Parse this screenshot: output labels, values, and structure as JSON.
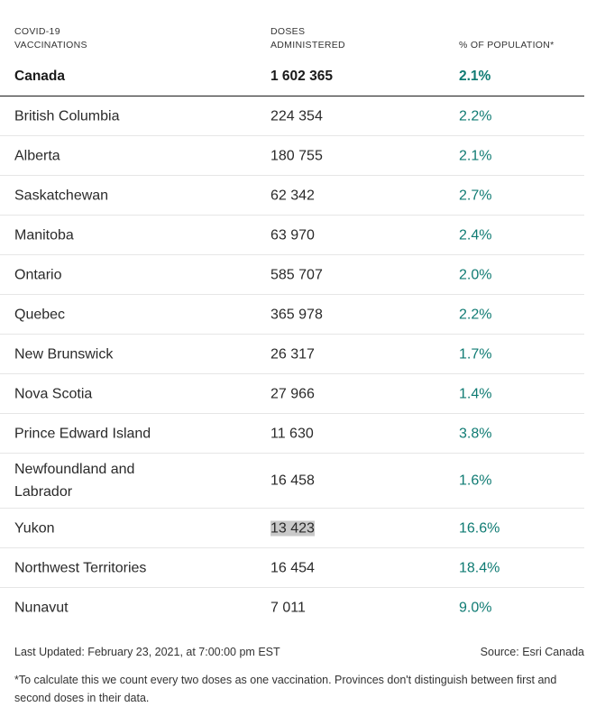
{
  "headers": {
    "region": [
      "COVID-19",
      "VACCINATIONS"
    ],
    "doses": [
      "DOSES",
      "ADMINISTERED"
    ],
    "percent": "% OF POPULATION*"
  },
  "total": {
    "region": "Canada",
    "doses": "1 602 365",
    "percent": "2.1%"
  },
  "rows": [
    {
      "region": "British Columbia",
      "doses": "224 354",
      "percent": "2.2%"
    },
    {
      "region": "Alberta",
      "doses": "180 755",
      "percent": "2.1%"
    },
    {
      "region": "Saskatchewan",
      "doses": "62 342",
      "percent": "2.7%"
    },
    {
      "region": "Manitoba",
      "doses": "63 970",
      "percent": "2.4%"
    },
    {
      "region": "Ontario",
      "doses": "585 707",
      "percent": "2.0%"
    },
    {
      "region": "Quebec",
      "doses": "365 978",
      "percent": "2.2%"
    },
    {
      "region": "New Brunswick",
      "doses": "26 317",
      "percent": "1.7%"
    },
    {
      "region": "Nova Scotia",
      "doses": "27 966",
      "percent": "1.4%"
    },
    {
      "region": "Prince Edward Island",
      "doses": "11 630",
      "percent": "3.8%"
    },
    {
      "region": "Newfoundland and Labrador",
      "doses": "16 458",
      "percent": "1.6%"
    },
    {
      "region": "Yukon",
      "doses": "13 423",
      "percent": "16.6%"
    },
    {
      "region": "Northwest Territories",
      "doses": "16 454",
      "percent": "18.4%"
    },
    {
      "region": "Nunavut",
      "doses": "7 011",
      "percent": "9.0%"
    }
  ],
  "footer": {
    "updated": "Last Updated: February 23, 2021, at 7:00:00 pm EST",
    "source": "Source: Esri Canada",
    "note": "*To calculate this we count every two doses as one vaccination. Provinces don't distinguish between first and second doses in their data."
  },
  "colors": {
    "percent_text": "#0f7b73",
    "highlight": "#c9c9c9"
  }
}
